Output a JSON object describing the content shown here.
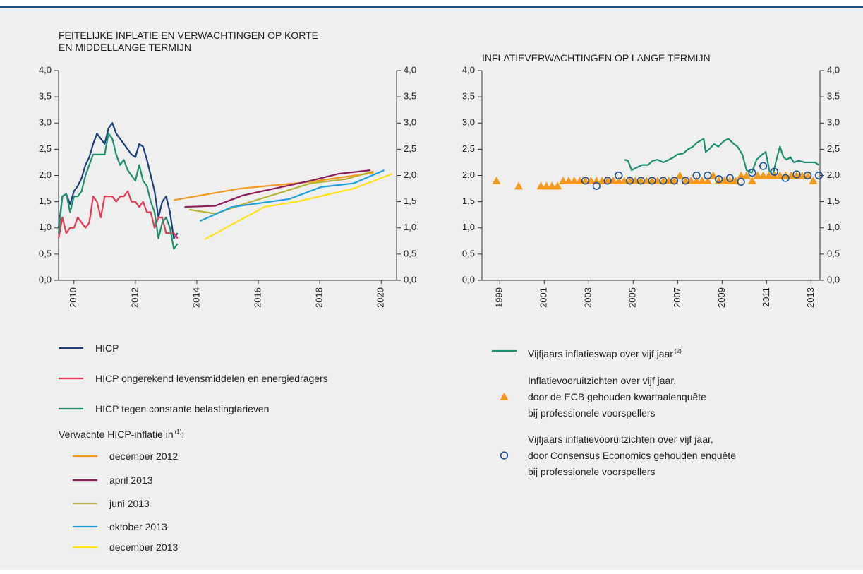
{
  "chart_data": [
    {
      "type": "line",
      "title": "FEITELIJKE INFLATIE EN VERWACHTINGEN OP KORTE\nEN MIDDELLANGE TERMIJN",
      "xlim": [
        2009.5,
        2020.5
      ],
      "xticks": [
        2010,
        2012,
        2014,
        2016,
        2018,
        2020
      ],
      "ylim": [
        0,
        4
      ],
      "yticks": [
        {
          "value": 0,
          "label": "0,0"
        },
        {
          "value": 0.5,
          "label": "0,5"
        },
        {
          "value": 1,
          "label": "1,0"
        },
        {
          "value": 1.5,
          "label": "1,5"
        },
        {
          "value": 2,
          "label": "2,0"
        },
        {
          "value": 2.5,
          "label": "2,5"
        },
        {
          "value": 3,
          "label": "3,0"
        },
        {
          "value": 3.5,
          "label": "3,5"
        },
        {
          "value": 4,
          "label": "4,0"
        }
      ],
      "legend_heading": "Verwachte HICP-inflatie in",
      "legend_heading_note": "(1)",
      "legend_heading_end": ":",
      "series": [
        {
          "name": "HICP",
          "color": "#1b3f7c",
          "x": [
            2009.5,
            2009.625,
            2009.75,
            2009.875,
            2010,
            2010.125,
            2010.25,
            2010.375,
            2010.5,
            2010.625,
            2010.75,
            2010.875,
            2011,
            2011.125,
            2011.25,
            2011.375,
            2011.5,
            2011.625,
            2011.75,
            2011.875,
            2012,
            2012.125,
            2012.25,
            2012.375,
            2012.5,
            2012.625,
            2012.75,
            2012.875,
            2013,
            2013.125,
            2013.25,
            2013.375
          ],
          "values": [
            1.0,
            1.6,
            1.65,
            1.45,
            1.7,
            1.8,
            1.95,
            2.2,
            2.35,
            2.6,
            2.8,
            2.7,
            2.6,
            2.9,
            3.0,
            2.8,
            2.7,
            2.6,
            2.5,
            2.4,
            2.35,
            2.6,
            2.55,
            2.3,
            2.0,
            1.7,
            1.2,
            1.5,
            1.6,
            1.3,
            0.8,
            0.9
          ]
        },
        {
          "name": "HICP ongerekend levensmiddelen en energiedragers",
          "color": "#e23a53",
          "x": [
            2009.5,
            2009.625,
            2009.75,
            2009.875,
            2010,
            2010.125,
            2010.25,
            2010.375,
            2010.5,
            2010.625,
            2010.75,
            2010.875,
            2011,
            2011.125,
            2011.25,
            2011.375,
            2011.5,
            2011.625,
            2011.75,
            2011.875,
            2012,
            2012.125,
            2012.25,
            2012.375,
            2012.5,
            2012.625,
            2012.75,
            2012.875,
            2013,
            2013.125,
            2013.25,
            2013.375
          ],
          "values": [
            0.8,
            1.2,
            0.9,
            1.0,
            1.0,
            1.2,
            1.1,
            1.0,
            1.1,
            1.6,
            1.5,
            1.2,
            1.6,
            1.6,
            1.6,
            1.5,
            1.6,
            1.6,
            1.7,
            1.5,
            1.5,
            1.4,
            1.5,
            1.3,
            1.3,
            1.0,
            1.2,
            1.2,
            0.9,
            0.9,
            0.9,
            0.8
          ]
        },
        {
          "name": "HICP tegen constante belastingtarieven",
          "color": "#1d9070",
          "x": [
            2009.5,
            2009.625,
            2009.75,
            2009.875,
            2010,
            2010.125,
            2010.25,
            2010.375,
            2010.5,
            2010.625,
            2010.75,
            2010.875,
            2011,
            2011.125,
            2011.25,
            2011.375,
            2011.5,
            2011.625,
            2011.75,
            2011.875,
            2012,
            2012.125,
            2012.25,
            2012.375,
            2012.5,
            2012.625,
            2012.75,
            2012.875,
            2013,
            2013.125,
            2013.25,
            2013.375
          ],
          "values": [
            0.9,
            1.6,
            1.65,
            1.3,
            1.6,
            1.6,
            1.7,
            2.0,
            2.2,
            2.4,
            2.4,
            2.4,
            2.4,
            2.8,
            2.7,
            2.4,
            2.2,
            2.3,
            2.1,
            2.0,
            1.9,
            2.2,
            1.9,
            1.8,
            1.5,
            1.3,
            0.8,
            1.1,
            1.2,
            1.0,
            0.6,
            0.7
          ]
        },
        {
          "name": "december 2012",
          "color": "#f39a1a",
          "x": [
            2013.25,
            2015.4,
            2017.7,
            2019.75
          ],
          "values": [
            1.53,
            1.75,
            1.88,
            2.05
          ]
        },
        {
          "name": "april 2013",
          "color": "#8c1d5b",
          "x": [
            2013.6,
            2014.6,
            2015.5,
            2017.7,
            2018.6,
            2019.65
          ],
          "values": [
            1.4,
            1.42,
            1.62,
            1.9,
            2.03,
            2.1
          ]
        },
        {
          "name": "juni 2013",
          "color": "#b9b234",
          "x": [
            2013.75,
            2014.6,
            2015.5,
            2017.7,
            2018.85,
            2019.75
          ],
          "values": [
            1.35,
            1.27,
            1.45,
            1.85,
            1.93,
            2.08
          ]
        },
        {
          "name": "oktober 2013",
          "color": "#1fa1dd",
          "x": [
            2014.1,
            2015.15,
            2017.0,
            2018.05,
            2019.1,
            2020.1
          ],
          "values": [
            1.13,
            1.4,
            1.55,
            1.78,
            1.85,
            2.1
          ]
        },
        {
          "name": "december 2013",
          "color": "#ffe11a",
          "x": [
            2014.25,
            2016.2,
            2017.25,
            2019.1,
            2020.35
          ],
          "values": [
            0.78,
            1.4,
            1.5,
            1.75,
            2.03
          ]
        }
      ]
    },
    {
      "type": "line",
      "title": "INFLATIEVERWACHTINGEN OP LANGE TERMIJN",
      "xlim": [
        1998.2,
        2013.4
      ],
      "xticks": [
        1999,
        2001,
        2003,
        2005,
        2007,
        2009,
        2011,
        2013
      ],
      "ylim": [
        0,
        4
      ],
      "yticks": [
        {
          "value": 0,
          "label": "0,0"
        },
        {
          "value": 0.5,
          "label": "0,5"
        },
        {
          "value": 1,
          "label": "1,0"
        },
        {
          "value": 1.5,
          "label": "1,5"
        },
        {
          "value": 2,
          "label": "2,0"
        },
        {
          "value": 2.5,
          "label": "2,5"
        },
        {
          "value": 3,
          "label": "3,0"
        },
        {
          "value": 3.5,
          "label": "3,5"
        },
        {
          "value": 4,
          "label": "4,0"
        }
      ],
      "series": [
        {
          "name": "Vijfjaars inflatieswap over vijf jaar",
          "note": "(2)",
          "color": "#1a9070",
          "marker": "none",
          "x": [
            2004.61,
            2004.77,
            2004.93,
            2005.15,
            2005.41,
            2005.66,
            2005.88,
            2006.1,
            2006.36,
            2006.61,
            2006.83,
            2006.99,
            2007.25,
            2007.47,
            2007.69,
            2007.85,
            2008.17,
            2008.26,
            2008.42,
            2008.64,
            2008.83,
            2009.06,
            2009.28,
            2009.53,
            2009.69,
            2009.91,
            2010.1,
            2010.33,
            2010.55,
            2010.8,
            2010.96,
            2011.12,
            2011.28,
            2011.44,
            2011.6,
            2011.76,
            2011.91,
            2012.07,
            2012.23,
            2012.45,
            2012.71,
            2012.96,
            2013.18,
            2013.34
          ],
          "values": [
            2.3,
            2.28,
            2.1,
            2.15,
            2.2,
            2.2,
            2.28,
            2.3,
            2.25,
            2.3,
            2.35,
            2.4,
            2.42,
            2.5,
            2.55,
            2.62,
            2.7,
            2.45,
            2.5,
            2.6,
            2.55,
            2.65,
            2.7,
            2.6,
            2.55,
            2.4,
            2.1,
            2.05,
            2.3,
            2.4,
            2.45,
            2.1,
            2.0,
            2.3,
            2.55,
            2.35,
            2.3,
            2.35,
            2.25,
            2.28,
            2.25,
            2.25,
            2.25,
            2.2
          ]
        },
        {
          "name": "Inflatievooruitzichten over vijf jaar,\ndoor de ECB gehouden kwartaalenquête\nbij professionele voorspellers",
          "color": "#f39a1a",
          "marker": "triangle",
          "x": [
            1998.85,
            1999.85,
            2000.85,
            2001.1,
            2001.35,
            2001.6,
            2001.85,
            2002.1,
            2002.35,
            2002.6,
            2002.85,
            2003.1,
            2003.35,
            2003.6,
            2003.85,
            2004.1,
            2004.35,
            2004.6,
            2004.85,
            2005.1,
            2005.35,
            2005.6,
            2005.85,
            2006.1,
            2006.35,
            2006.6,
            2006.85,
            2007.1,
            2007.35,
            2007.6,
            2007.85,
            2008.1,
            2008.35,
            2008.6,
            2008.85,
            2009.1,
            2009.35,
            2009.6,
            2009.85,
            2010.1,
            2010.35,
            2010.6,
            2010.85,
            2011.1,
            2011.35,
            2011.6,
            2011.85,
            2012.1,
            2012.35,
            2012.6,
            2012.85,
            2013.1
          ],
          "values": [
            1.9,
            1.8,
            1.8,
            1.8,
            1.8,
            1.8,
            1.9,
            1.9,
            1.9,
            1.9,
            1.9,
            1.9,
            1.9,
            1.9,
            1.9,
            1.9,
            1.9,
            1.9,
            1.9,
            1.9,
            1.9,
            1.9,
            1.9,
            1.9,
            1.9,
            1.9,
            1.9,
            2.0,
            1.9,
            1.9,
            1.9,
            1.9,
            1.9,
            2.0,
            1.9,
            1.9,
            1.9,
            1.9,
            2.0,
            2.0,
            1.9,
            2.0,
            2.0,
            2.0,
            2.0,
            2.0,
            2.0,
            2.0,
            2.0,
            2.0,
            2.0,
            1.9
          ]
        },
        {
          "name": "Vijfjaars inflatievooruitzichten over vijf jaar,\ndoor Consensus Economics gehouden enquête\nbij professionele voorspellers",
          "color": "#1a4f9a",
          "marker": "circle",
          "x": [
            2002.85,
            2003.35,
            2003.85,
            2004.35,
            2004.85,
            2005.35,
            2005.85,
            2006.35,
            2006.85,
            2007.35,
            2007.85,
            2008.35,
            2008.85,
            2009.35,
            2009.85,
            2010.35,
            2010.85,
            2011.35,
            2011.85,
            2012.35,
            2012.85,
            2013.35
          ],
          "values": [
            1.9,
            1.8,
            1.9,
            2.0,
            1.9,
            1.9,
            1.9,
            1.9,
            1.9,
            1.9,
            2.0,
            2.0,
            1.93,
            1.95,
            1.88,
            2.05,
            2.18,
            2.07,
            1.95,
            2.02,
            2.0,
            2.0
          ]
        }
      ]
    }
  ]
}
